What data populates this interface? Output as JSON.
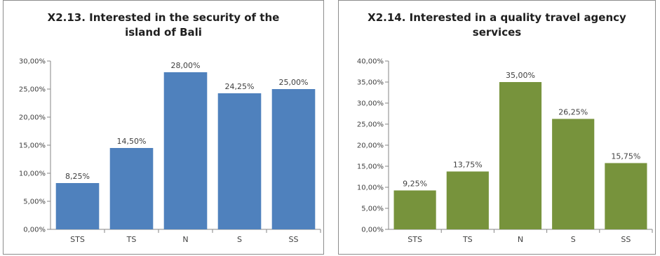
{
  "chart_data": [
    {
      "type": "bar",
      "title": "X2.13. Interested in the security of the island of Bali",
      "categories": [
        "STS",
        "TS",
        "N",
        "S",
        "SS"
      ],
      "values": [
        8.25,
        14.5,
        28.0,
        24.25,
        25.0
      ],
      "data_labels": [
        "8,25%",
        "14,50%",
        "28,00%",
        "24,25%",
        "25,00%"
      ],
      "ylim": [
        0,
        30
      ],
      "yticks": [
        "0,00%",
        "5,00%",
        "10,00%",
        "15,00%",
        "20,00%",
        "25,00%",
        "30,00%"
      ],
      "bar_color": "#4f81bd",
      "grid": false,
      "legend": "none"
    },
    {
      "type": "bar",
      "title": "X2.14. Interested in a quality travel agency services",
      "categories": [
        "STS",
        "TS",
        "N",
        "S",
        "SS"
      ],
      "values": [
        9.25,
        13.75,
        35.0,
        26.25,
        15.75
      ],
      "data_labels": [
        "9,25%",
        "13,75%",
        "35,00%",
        "26,25%",
        "15,75%"
      ],
      "ylim": [
        0,
        40
      ],
      "yticks": [
        "0,00%",
        "5,00%",
        "10,00%",
        "15,00%",
        "20,00%",
        "25,00%",
        "30,00%",
        "35,00%",
        "40,00%"
      ],
      "bar_color": "#77933c",
      "grid": false,
      "legend": "none"
    }
  ]
}
